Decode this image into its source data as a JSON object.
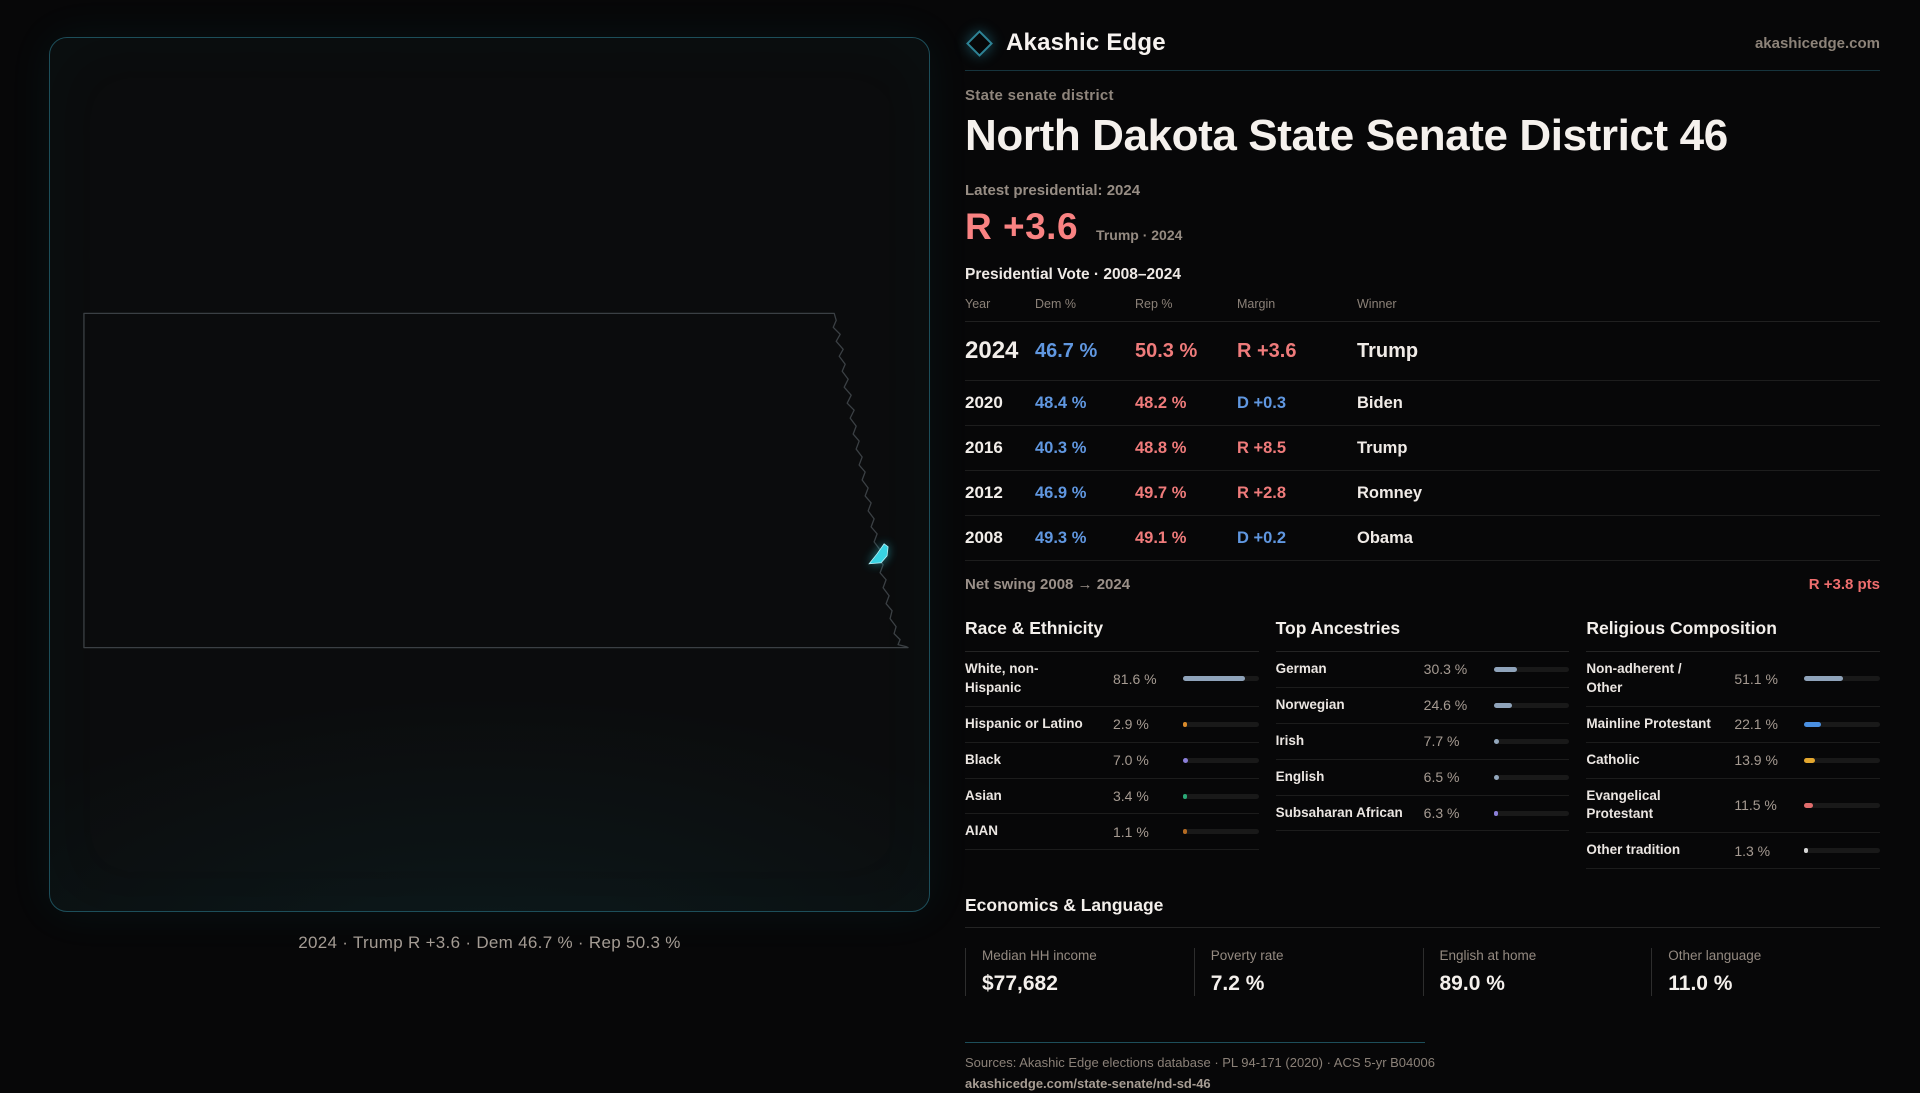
{
  "brand": {
    "name": "Akashic Edge",
    "site": "akashicedge.com"
  },
  "header": {
    "kicker": "State senate district",
    "title": "North Dakota State Senate District 46",
    "latest_label": "Latest presidential: 2024",
    "margin_value": "R +3.6",
    "margin_sub": "Trump · 2024"
  },
  "map": {
    "caption": "2024 · Trump R +3.6 · Dem 46.7 % · Rep 50.3 %",
    "district_color": "#38d3e3"
  },
  "vote_table": {
    "title": "Presidential Vote · 2008–2024",
    "columns": [
      "Year",
      "Dem %",
      "Rep %",
      "Margin",
      "Winner"
    ],
    "rows": [
      {
        "year": "2024",
        "dem": "46.7 %",
        "rep": "50.3 %",
        "margin": "R +3.6",
        "margin_party": "R",
        "winner": "Trump",
        "emphasis": true
      },
      {
        "year": "2020",
        "dem": "48.4 %",
        "rep": "48.2 %",
        "margin": "D +0.3",
        "margin_party": "D",
        "winner": "Biden"
      },
      {
        "year": "2016",
        "dem": "40.3 %",
        "rep": "48.8 %",
        "margin": "R +8.5",
        "margin_party": "R",
        "winner": "Trump"
      },
      {
        "year": "2012",
        "dem": "46.9 %",
        "rep": "49.7 %",
        "margin": "R +2.8",
        "margin_party": "R",
        "winner": "Romney"
      },
      {
        "year": "2008",
        "dem": "49.3 %",
        "rep": "49.1 %",
        "margin": "D +0.2",
        "margin_party": "D",
        "winner": "Obama"
      }
    ],
    "net_swing_label": "Net swing 2008 → 2024",
    "net_swing_value": "R +3.8 pts"
  },
  "demographics": [
    {
      "title": "Race & Ethnicity",
      "rows": [
        {
          "label": "White, non-\nHispanic",
          "value": "81.6 %",
          "pct": 81.6,
          "color": "#8fa3ba"
        },
        {
          "label": "Hispanic or Latino",
          "value": "2.9 %",
          "pct": 2.9,
          "color": "#d98a2b"
        },
        {
          "label": "Black",
          "value": "7.0 %",
          "pct": 7.0,
          "color": "#8b7fd9"
        },
        {
          "label": "Asian",
          "value": "3.4 %",
          "pct": 3.4,
          "color": "#2aa876"
        },
        {
          "label": "AIAN",
          "value": "1.1 %",
          "pct": 1.1,
          "color": "#b36a22"
        }
      ]
    },
    {
      "title": "Top Ancestries",
      "rows": [
        {
          "label": "German",
          "value": "30.3 %",
          "pct": 30.3,
          "color": "#8fa3ba"
        },
        {
          "label": "Norwegian",
          "value": "24.6 %",
          "pct": 24.6,
          "color": "#8fa3ba"
        },
        {
          "label": "Irish",
          "value": "7.7 %",
          "pct": 7.7,
          "color": "#93a7bd"
        },
        {
          "label": "English",
          "value": "6.5 %",
          "pct": 6.5,
          "color": "#93a7bd"
        },
        {
          "label": "Subsaharan African",
          "value": "6.3 %",
          "pct": 6.3,
          "color": "#8b7fd9"
        }
      ]
    },
    {
      "title": "Religious Composition",
      "rows": [
        {
          "label": "Non-adherent /\nOther",
          "value": "51.1 %",
          "pct": 51.1,
          "color": "#8fa3ba"
        },
        {
          "label": "Mainline Protestant",
          "value": "22.1 %",
          "pct": 22.1,
          "color": "#4a90e2"
        },
        {
          "label": "Catholic",
          "value": "13.9 %",
          "pct": 13.9,
          "color": "#e3a72f"
        },
        {
          "label": "Evangelical\nProtestant",
          "value": "11.5 %",
          "pct": 11.5,
          "color": "#e06c6c"
        },
        {
          "label": "Other tradition",
          "value": "1.3 %",
          "pct": 1.3,
          "color": "#d6d6d6"
        }
      ]
    }
  ],
  "economics": {
    "title": "Economics & Language",
    "stats": [
      {
        "label": "Median HH income",
        "value": "$77,682"
      },
      {
        "label": "Poverty rate",
        "value": "7.2 %"
      },
      {
        "label": "English at home",
        "value": "89.0 %"
      },
      {
        "label": "Other language",
        "value": "11.0 %"
      }
    ]
  },
  "sources": {
    "line1": "Sources: Akashic Edge elections database · PL 94-171 (2020) · ACS 5-yr B04006",
    "line2": "akashicedge.com/state-senate/nd-sd-46"
  },
  "chart_data": [
    {
      "type": "table",
      "title": "Presidential Vote · 2008–2024",
      "columns": [
        "Year",
        "Dem %",
        "Rep %",
        "Margin",
        "Winner"
      ],
      "rows": [
        [
          2024,
          46.7,
          50.3,
          "R +3.6",
          "Trump"
        ],
        [
          2020,
          48.4,
          48.2,
          "D +0.3",
          "Biden"
        ],
        [
          2016,
          40.3,
          48.8,
          "R +8.5",
          "Trump"
        ],
        [
          2012,
          46.9,
          49.7,
          "R +2.8",
          "Romney"
        ],
        [
          2008,
          49.3,
          49.1,
          "D +0.2",
          "Obama"
        ]
      ],
      "annotations": {
        "net_swing_2008_2024": "R +3.8 pts",
        "latest_margin": "R +3.6 (Trump 2024)"
      }
    },
    {
      "type": "bar",
      "title": "Race & Ethnicity",
      "categories": [
        "White, non-Hispanic",
        "Hispanic or Latino",
        "Black",
        "Asian",
        "AIAN"
      ],
      "values": [
        81.6,
        2.9,
        7.0,
        3.4,
        1.1
      ],
      "xlabel": "",
      "ylabel": "%",
      "ylim": [
        0,
        100
      ]
    },
    {
      "type": "bar",
      "title": "Top Ancestries",
      "categories": [
        "German",
        "Norwegian",
        "Irish",
        "English",
        "Subsaharan African"
      ],
      "values": [
        30.3,
        24.6,
        7.7,
        6.5,
        6.3
      ],
      "xlabel": "",
      "ylabel": "%",
      "ylim": [
        0,
        100
      ]
    },
    {
      "type": "bar",
      "title": "Religious Composition",
      "categories": [
        "Non-adherent / Other",
        "Mainline Protestant",
        "Catholic",
        "Evangelical Protestant",
        "Other tradition"
      ],
      "values": [
        51.1,
        22.1,
        13.9,
        11.5,
        1.3
      ],
      "xlabel": "",
      "ylabel": "%",
      "ylim": [
        0,
        100
      ]
    },
    {
      "type": "table",
      "title": "Economics & Language",
      "columns": [
        "Median HH income",
        "Poverty rate",
        "English at home",
        "Other language"
      ],
      "rows": [
        [
          "$77,682",
          "7.2 %",
          "89.0 %",
          "11.0 %"
        ]
      ]
    }
  ]
}
